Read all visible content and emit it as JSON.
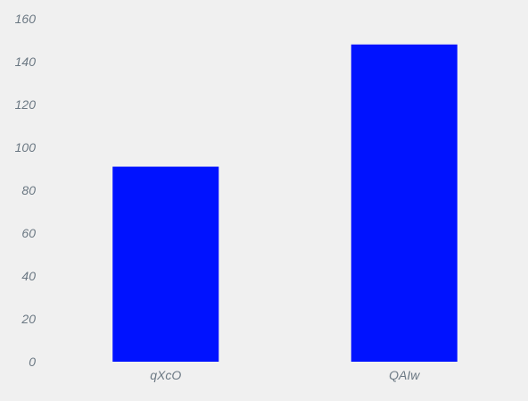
{
  "chart_data": {
    "type": "bar",
    "categories": [
      "qXcO",
      "QAIw"
    ],
    "values": [
      91,
      148
    ],
    "title": "",
    "xlabel": "",
    "ylabel": "",
    "ylim": [
      0,
      160
    ],
    "yticks": [
      0,
      20,
      40,
      60,
      80,
      100,
      120,
      140,
      160
    ],
    "grid": false,
    "legend": "none",
    "colors": {
      "bar": "#0012ff",
      "tick_text": "#6b7883",
      "background": "#f0f0f0"
    }
  }
}
